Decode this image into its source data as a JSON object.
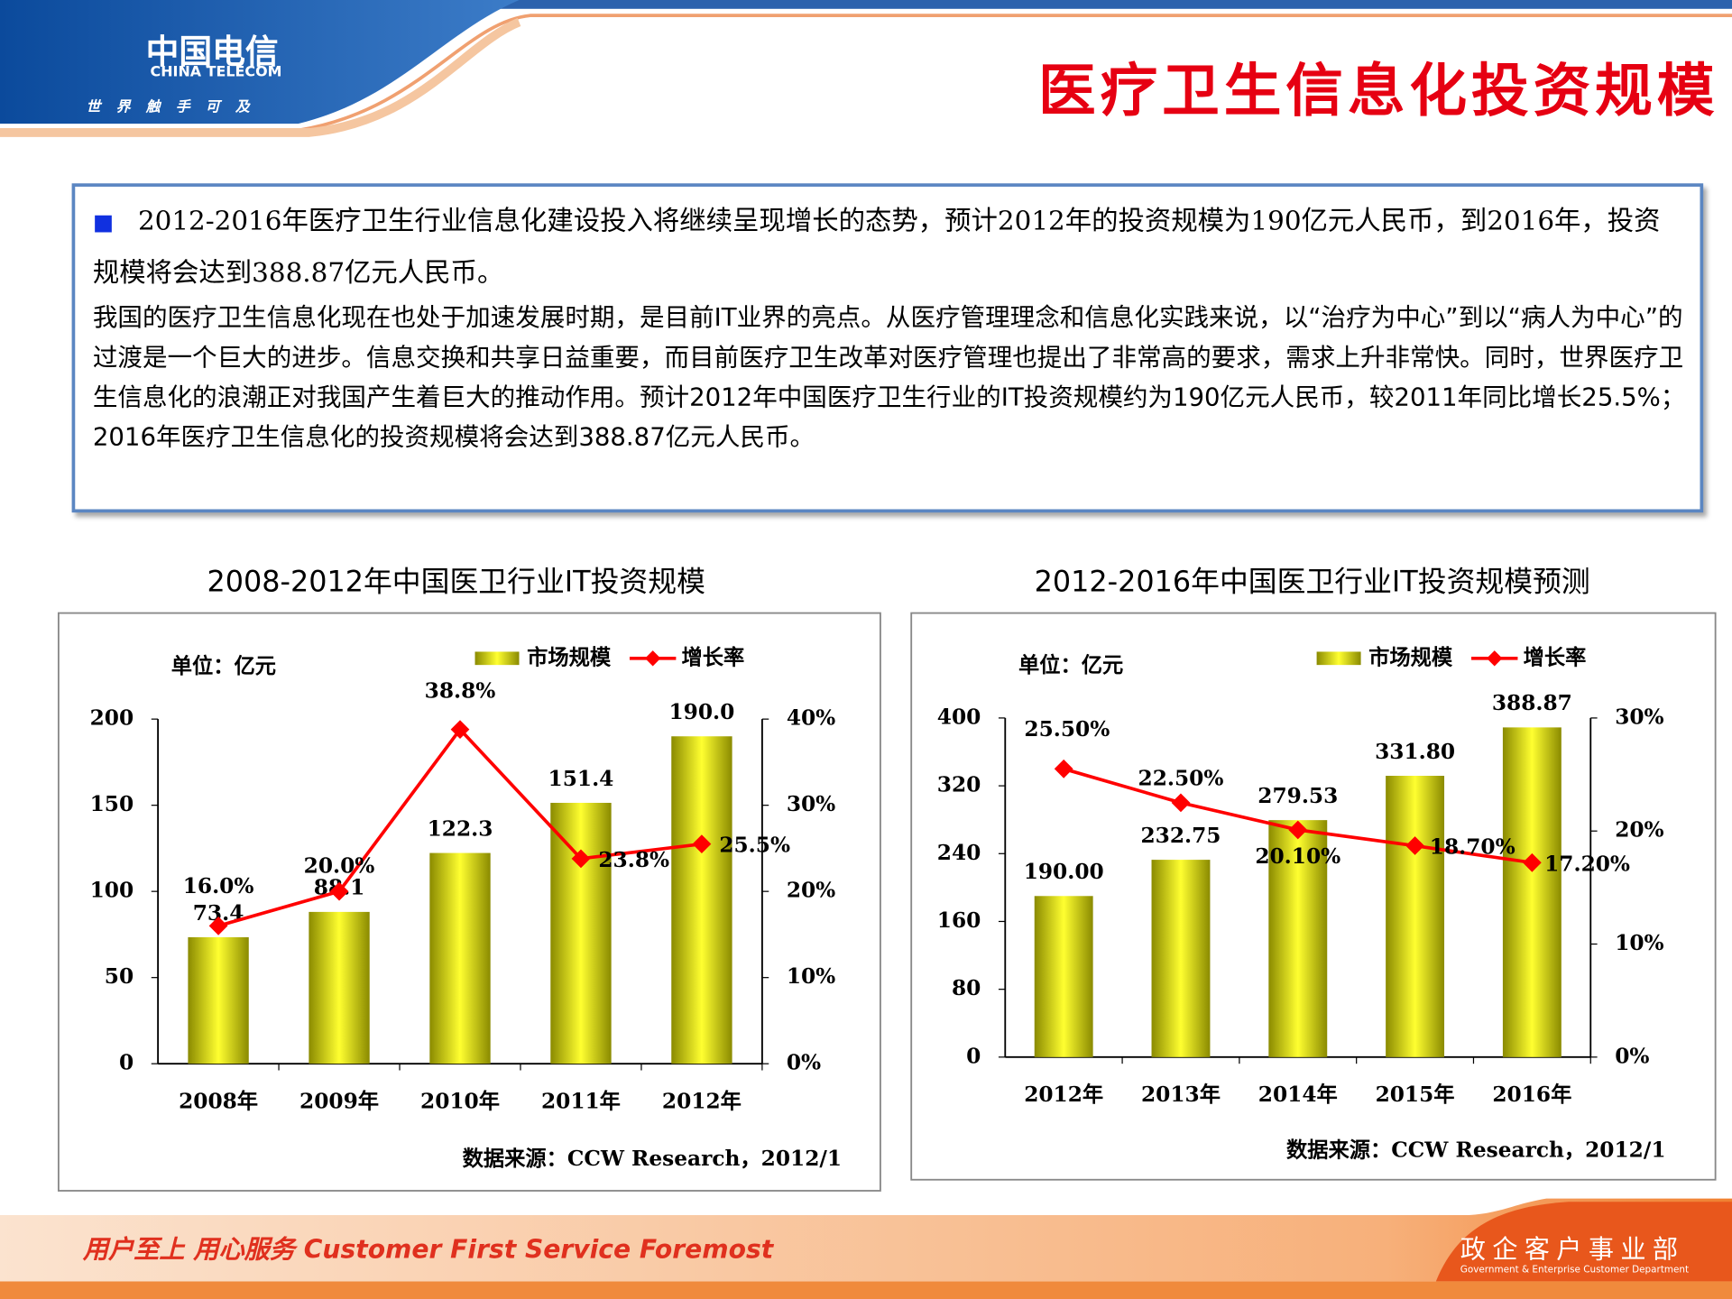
{
  "header": {
    "logo": "中国电信",
    "logo_en": "CHINA TELECOM",
    "slogan": "世界触手可及",
    "title": "医疗卫生信息化投资规模"
  },
  "summary": {
    "lead": "2012-2016年医疗卫生行业信息化建设投入将继续呈现增长的态势，预计2012年的投资规模为190亿元人民币，到2016年，投资规模将会达到388.87亿元人民币。",
    "body": "我国的医疗卫生信息化现在也处于加速发展时期，是目前IT业界的亮点。从医疗管理理念和信息化实践来说，以“治疗为中心”到以“病人为中心”的过渡是一个巨大的进步。信息交换和共享日益重要，而目前医疗卫生改革对医疗管理也提出了非常高的要求，需求上升非常快。同时，世界医疗卫生信息化的浪潮正对我国产生着巨大的推动作用。预计2012年中国医疗卫生行业的IT投资规模约为190亿元人民币，较2011年同比增长25.5%；2016年医疗卫生信息化的投资规模将会达到388.87亿元人民币。"
  },
  "chart_data": [
    {
      "type": "combo",
      "title": "2008-2012年中国医卫行业IT投资规模",
      "unit": "单位：亿元",
      "source": "数据来源：CCW Research，2012/1",
      "categories": [
        "2008年",
        "2009年",
        "2010年",
        "2011年",
        "2012年"
      ],
      "series": [
        {
          "name": "市场规模",
          "color": "#d8d800",
          "values": [
            73.4,
            88.1,
            122.3,
            151.4,
            190.0
          ],
          "value_labels": [
            "73.4",
            "88.1",
            "122.3",
            "151.4",
            "190.0"
          ]
        },
        {
          "name": "增长率",
          "color": "#ff0000",
          "axis": "y2",
          "values": [
            16.0,
            20.0,
            38.8,
            23.8,
            25.5
          ],
          "value_labels": [
            "16.0%",
            "20.0%",
            "38.8%",
            "23.8%",
            "25.5%"
          ]
        }
      ],
      "ylim": [
        0,
        200
      ],
      "yticks": [
        0,
        50,
        100,
        150,
        200
      ],
      "y2lim": [
        0,
        40
      ],
      "y2ticks": [
        {
          "value": 0,
          "label": "0%"
        },
        {
          "value": 10,
          "label": "10%"
        },
        {
          "value": 20,
          "label": "20%"
        },
        {
          "value": 30,
          "label": "30%"
        },
        {
          "value": 40,
          "label": "40%"
        }
      ]
    },
    {
      "type": "combo",
      "title": "2012-2016年中国医卫行业IT投资规模预测",
      "unit": "单位：亿元",
      "source": "数据来源：CCW Research，2012/1",
      "categories": [
        "2012年",
        "2013年",
        "2014年",
        "2015年",
        "2016年"
      ],
      "series": [
        {
          "name": "市场规模",
          "color": "#d8d800",
          "values": [
            190.0,
            232.75,
            279.53,
            331.8,
            388.87
          ],
          "value_labels": [
            "190.00",
            "232.75",
            "279.53",
            "331.80",
            "388.87"
          ]
        },
        {
          "name": "增长率",
          "color": "#ff0000",
          "axis": "y2",
          "values": [
            25.5,
            22.5,
            20.1,
            18.7,
            17.2
          ],
          "value_labels": [
            "25.50%",
            "22.50%",
            "20.10%",
            "18.70%",
            "17.20%"
          ]
        }
      ],
      "ylim": [
        0,
        400
      ],
      "yticks": [
        0,
        80,
        160,
        240,
        320,
        400
      ],
      "y2lim": [
        0,
        30
      ],
      "y2ticks": [
        {
          "value": 0,
          "label": "0%"
        },
        {
          "value": 10,
          "label": "10%"
        },
        {
          "value": 20,
          "label": "20%"
        },
        {
          "value": 30,
          "label": "30%"
        }
      ]
    }
  ],
  "footer": {
    "motto": "用户至上 用心服务 Customer First Service Foremost",
    "dept": "政企客户事业部",
    "dept_en": "Government & Enterprise Customer Department"
  }
}
